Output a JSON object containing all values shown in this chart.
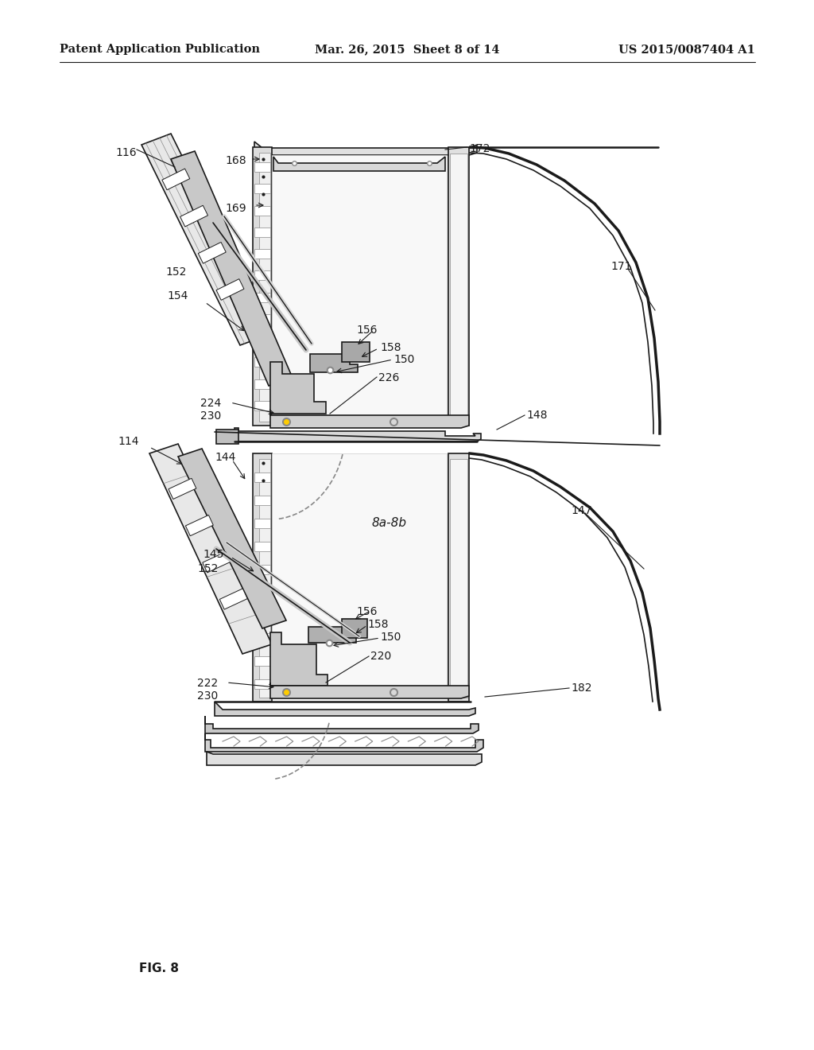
{
  "bg_color": "#ffffff",
  "header_left": "Patent Application Publication",
  "header_mid": "Mar. 26, 2015  Sheet 8 of 14",
  "header_right": "US 2015/0087404 A1",
  "fig_label": "FIG. 8",
  "line_color": "#1a1a1a",
  "gray_light": "#e8e8e8",
  "gray_mid": "#c8c8c8",
  "gray_dark": "#888888",
  "white": "#ffffff"
}
